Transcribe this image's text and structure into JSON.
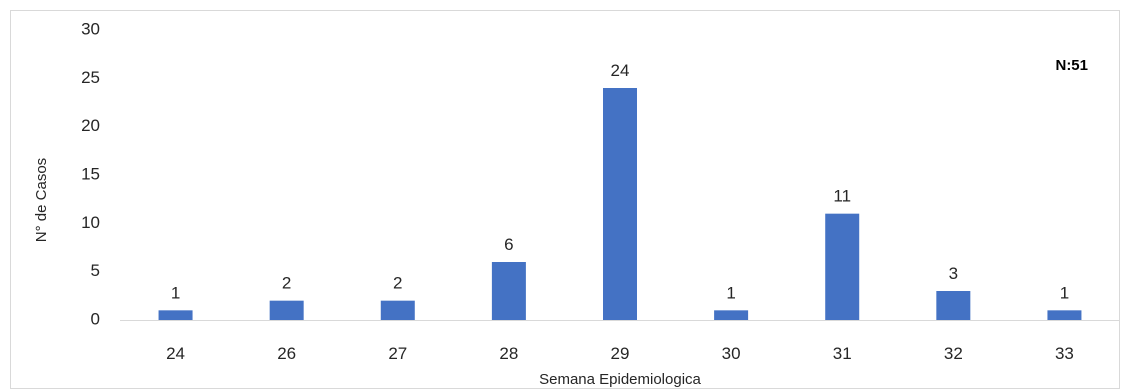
{
  "chart_data": {
    "type": "bar",
    "title": "",
    "xlabel": "Semana Epidemiologica",
    "ylabel": "N° de Casos",
    "categories": [
      "24",
      "26",
      "27",
      "28",
      "29",
      "30",
      "31",
      "32",
      "33"
    ],
    "values": [
      1,
      2,
      2,
      6,
      24,
      1,
      11,
      3,
      1
    ],
    "ylim": [
      0,
      30
    ],
    "yticks": [
      "0",
      "5",
      "10",
      "15",
      "20",
      "25",
      "30"
    ],
    "grid": false,
    "legend": "none",
    "bar_color": "#4472c4",
    "annotation": "N:51",
    "data_labels": true
  }
}
